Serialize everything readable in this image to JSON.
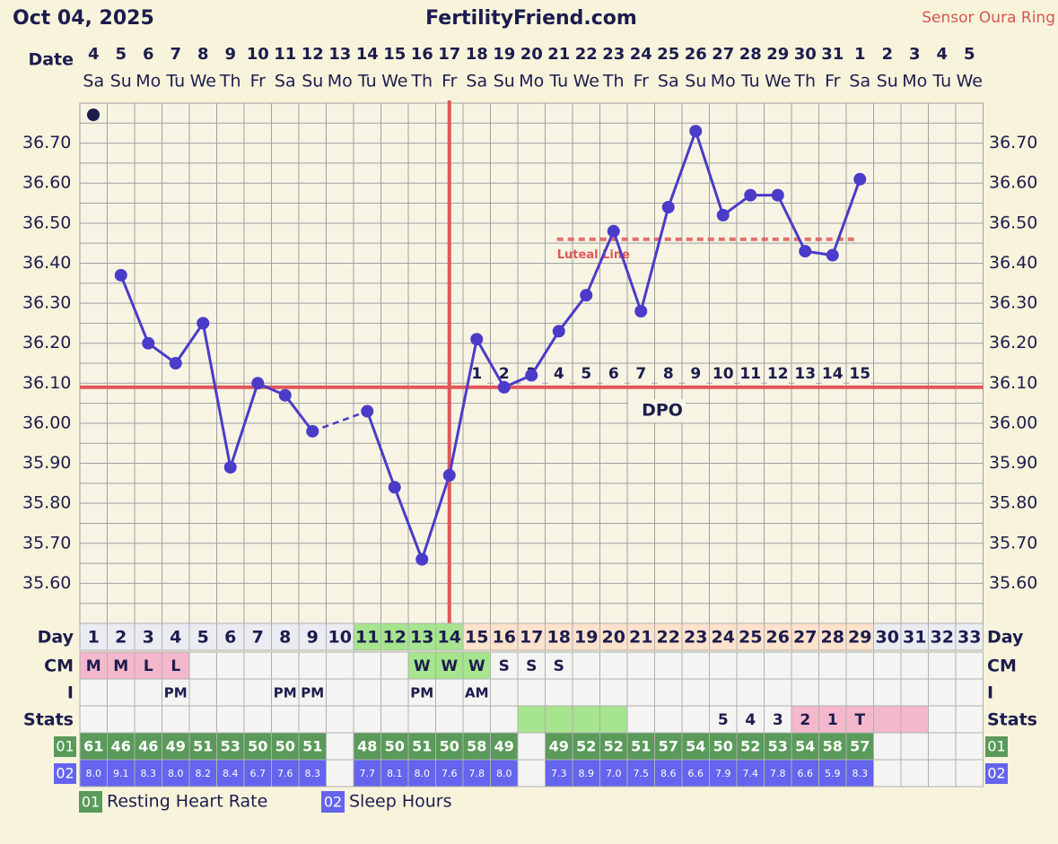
{
  "header": {
    "date": "Oct 04, 2025",
    "site": "FertilityFriend.com",
    "sensor": "Sensor Oura Ring"
  },
  "chart_data": {
    "type": "line",
    "date_label": "Date",
    "x": [
      "4",
      "5",
      "6",
      "7",
      "8",
      "9",
      "10",
      "11",
      "12",
      "13",
      "14",
      "15",
      "16",
      "17",
      "18",
      "19",
      "20",
      "21",
      "22",
      "23",
      "24",
      "25",
      "26",
      "27",
      "28",
      "29",
      "30",
      "31",
      "1",
      "2",
      "3",
      "4",
      "5"
    ],
    "weekdays": [
      "Sa",
      "Su",
      "Mo",
      "Tu",
      "We",
      "Th",
      "Fr",
      "Sa",
      "Su",
      "Mo",
      "Tu",
      "We",
      "Th",
      "Fr",
      "Sa",
      "Su",
      "Mo",
      "Tu",
      "We",
      "Th",
      "Fr",
      "Sa",
      "Su",
      "Mo",
      "Tu",
      "We",
      "Th",
      "Fr",
      "Sa",
      "Su",
      "Mo",
      "Tu",
      "We"
    ],
    "values": [
      null,
      36.37,
      36.2,
      36.15,
      36.25,
      35.89,
      36.1,
      36.07,
      35.98,
      null,
      36.03,
      35.84,
      35.66,
      35.87,
      36.21,
      36.09,
      36.12,
      36.23,
      36.32,
      36.48,
      36.28,
      36.54,
      36.73,
      36.52,
      36.57,
      36.57,
      36.43,
      36.42,
      36.61,
      null,
      null,
      null,
      null
    ],
    "color": "#4a3cc8",
    "ylim": [
      35.5,
      36.8
    ],
    "yticks": [
      {
        "value": 35.6,
        "label": "35.60"
      },
      {
        "value": 35.7,
        "label": "35.70"
      },
      {
        "value": 35.8,
        "label": "35.80"
      },
      {
        "value": 35.9,
        "label": "35.90"
      },
      {
        "value": 36.0,
        "label": "36.00"
      },
      {
        "value": 36.1,
        "label": "36.10"
      },
      {
        "value": 36.2,
        "label": "36.20"
      },
      {
        "value": 36.3,
        "label": "36.30"
      },
      {
        "value": 36.4,
        "label": "36.40"
      },
      {
        "value": 36.5,
        "label": "36.50"
      },
      {
        "value": 36.6,
        "label": "36.60"
      },
      {
        "value": 36.7,
        "label": "36.70"
      }
    ],
    "minor_yticks": [
      35.5,
      35.55,
      35.65,
      35.75,
      35.85,
      35.95,
      36.05,
      36.15,
      36.25,
      36.35,
      36.45,
      36.55,
      36.65,
      36.75,
      36.8
    ],
    "grid": true,
    "coverline": 36.09,
    "line_color": "#e05858",
    "ovulation_day": 14,
    "luteal_line": {
      "label": "Luteal Line",
      "value": 36.46,
      "from_day": 18,
      "to_day": 29
    },
    "dpo_label": "DPO",
    "dpo": [
      null,
      null,
      null,
      null,
      null,
      null,
      null,
      null,
      null,
      null,
      null,
      null,
      null,
      null,
      1,
      2,
      3,
      4,
      5,
      6,
      7,
      8,
      9,
      10,
      11,
      12,
      13,
      14,
      15,
      null,
      null,
      null,
      null
    ]
  },
  "table": {
    "row_labels": [
      "Day",
      "CM",
      "I",
      "Stats"
    ],
    "cell_color": "#f4f4f2",
    "days": [
      1,
      2,
      3,
      4,
      5,
      6,
      7,
      8,
      9,
      10,
      11,
      12,
      13,
      14,
      15,
      16,
      17,
      18,
      19,
      20,
      21,
      22,
      23,
      24,
      25,
      26,
      27,
      28,
      29,
      30,
      31,
      32,
      33
    ],
    "day_colors": [
      "#ebebf2",
      "#ebebf2",
      "#ebebf2",
      "#ebebf2",
      "#ebebf2",
      "#ebebf2",
      "#ebebf2",
      "#ebebf2",
      "#ebebf2",
      "#ebebf2",
      "#a6e48e",
      "#a6e48e",
      "#a6e48e",
      "#a6e48e",
      "#fde2cc",
      "#fde2cc",
      "#fde2cc",
      "#fde2cc",
      "#fde2cc",
      "#fde2cc",
      "#fde2cc",
      "#fde2cc",
      "#fde2cc",
      "#fde2cc",
      "#fde2cc",
      "#fde2cc",
      "#fde2cc",
      "#fde2cc",
      "#fde2cc",
      "#ebebf2",
      "#ebebf2",
      "#ebebf2",
      "#ebebf2"
    ],
    "cm": [
      "M",
      "M",
      "L",
      "L",
      null,
      null,
      null,
      null,
      null,
      null,
      null,
      null,
      "W",
      "W",
      "W",
      "S",
      "S",
      "S",
      null,
      null,
      null,
      null,
      null,
      null,
      null,
      null,
      null,
      null,
      null,
      null,
      null,
      null,
      null
    ],
    "cm_colors": [
      "#f3b8cc",
      "#f3b8cc",
      "#f3b8cc",
      "#f3b8cc",
      null,
      null,
      null,
      null,
      null,
      null,
      null,
      null,
      "#a6e48e",
      "#a6e48e",
      "#a6e48e",
      null,
      null,
      null,
      null,
      null,
      null,
      null,
      null,
      null,
      null,
      null,
      null,
      null,
      null,
      null,
      null,
      null,
      null
    ],
    "intercourse": [
      null,
      null,
      null,
      "PM",
      null,
      null,
      null,
      "PM",
      "PM",
      null,
      null,
      null,
      "PM",
      null,
      "AM",
      null,
      null,
      null,
      null,
      null,
      null,
      null,
      null,
      null,
      null,
      null,
      null,
      null,
      null,
      null,
      null,
      null,
      null
    ],
    "stats": [
      null,
      null,
      null,
      null,
      null,
      null,
      null,
      null,
      null,
      null,
      null,
      null,
      null,
      null,
      null,
      null,
      null,
      null,
      null,
      null,
      null,
      null,
      null,
      "5",
      "4",
      "3",
      "2",
      "1",
      "T",
      null,
      null,
      null,
      null
    ],
    "stats_colors": [
      null,
      null,
      null,
      null,
      null,
      null,
      null,
      null,
      null,
      null,
      null,
      null,
      null,
      null,
      null,
      null,
      "#a6e48e",
      "#a6e48e",
      "#a6e48e",
      "#a6e48e",
      null,
      null,
      null,
      null,
      null,
      null,
      "#f3b8cc",
      "#f3b8cc",
      "#f3b8cc",
      "#f3b8cc",
      "#f3b8cc",
      null,
      null
    ],
    "hr": [
      "61",
      "46",
      "46",
      "49",
      "51",
      "53",
      "50",
      "50",
      "51",
      null,
      "48",
      "50",
      "51",
      "50",
      "58",
      "49",
      null,
      "49",
      "52",
      "52",
      "51",
      "57",
      "54",
      "50",
      "52",
      "53",
      "54",
      "58",
      "57",
      null,
      null,
      null,
      null
    ],
    "sleep": [
      "8.0",
      "9.1",
      "8.3",
      "8.0",
      "8.2",
      "8.4",
      "6.7",
      "7.6",
      "8.3",
      null,
      "7.7",
      "8.1",
      "8.0",
      "7.6",
      "7.8",
      "8.0",
      null,
      "7.3",
      "8.9",
      "7.0",
      "7.5",
      "8.6",
      "6.6",
      "7.9",
      "7.4",
      "7.8",
      "6.6",
      "5.9",
      "8.3",
      null,
      null,
      null,
      null
    ]
  },
  "legend": [
    {
      "key": "01",
      "label": "Resting Heart Rate",
      "color": "#5a9a5a"
    },
    {
      "key": "02",
      "label": "Sleep Hours",
      "color": "#6464ee"
    }
  ]
}
